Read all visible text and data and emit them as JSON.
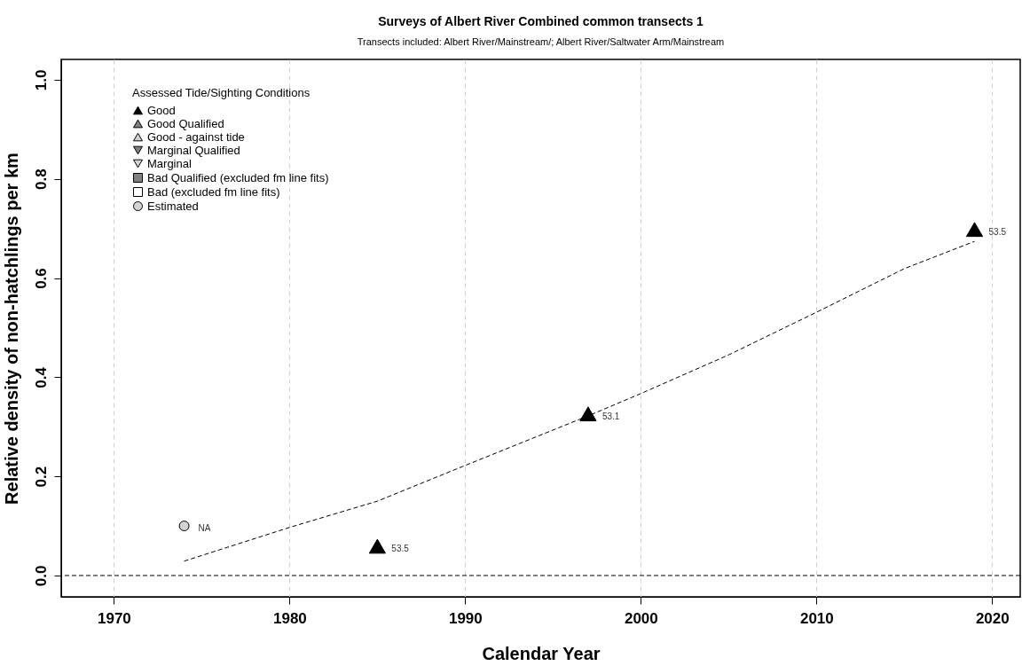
{
  "chart_data": {
    "type": "scatter",
    "title": "Surveys of Albert River  Combined common transects 1",
    "subtitle": "Transects included: Albert River/Mainstream/; Albert River/Saltwater Arm/Mainstream",
    "xlabel": "Calendar Year",
    "ylabel": "Relative density of non-hatchlings per km",
    "legend_title": "Assessed Tide/Sighting Conditions",
    "legend": "top left",
    "xlim": [
      1967,
      2021.6
    ],
    "xticks": [
      1970,
      1980,
      1990,
      2000,
      2010,
      2020
    ],
    "ylim": [
      -0.043,
      1.041
    ],
    "yticks": [
      {
        "value": 0,
        "label": "0.0"
      },
      {
        "value": 0.2,
        "label": "0.2"
      },
      {
        "value": 0.4,
        "label": "0.4"
      },
      {
        "value": 0.6,
        "label": "0.6"
      },
      {
        "value": 0.8,
        "label": "0.8"
      },
      {
        "value": 1,
        "label": "1.0"
      }
    ],
    "grid": "x",
    "ref_lines": [
      {
        "axis": "y",
        "value": 0,
        "color": "#000000",
        "line_style": "dashed"
      }
    ],
    "annotations": [
      {
        "text": "53.5",
        "x": 1985,
        "y": 0.059
      },
      {
        "text": "53.1",
        "x": 1997,
        "y": 0.326
      },
      {
        "text": "53.5",
        "x": 2019,
        "y": 0.698
      },
      {
        "text": "NA",
        "x": 1974,
        "y": 0.1
      }
    ],
    "series": [
      {
        "name": "Good",
        "marker": "triangle",
        "color": "#000000",
        "x": [
          1985,
          1997,
          2019
        ],
        "values": [
          0.059,
          0.326,
          0.698
        ]
      },
      {
        "name": "Good Qualified",
        "marker": "triangle",
        "color": "#808080"
      },
      {
        "name": "Good - against tide",
        "marker": "triangle",
        "color": "#d3d3d3"
      },
      {
        "name": "Marginal Qualified",
        "marker": "triangle-down",
        "color": "#808080"
      },
      {
        "name": "Marginal",
        "marker": "triangle-down",
        "color": "#d3d3d3"
      },
      {
        "name": "Bad Qualified (excluded fm line fits)",
        "marker": "square",
        "color": "#808080"
      },
      {
        "name": "Bad (excluded fm line fits)",
        "marker": "square",
        "color": "#ffffff"
      },
      {
        "name": "Estimated",
        "marker": "circle",
        "color": "#d3d3d3",
        "x": [
          1974
        ],
        "values": [
          0.1
        ]
      },
      {
        "type": "line",
        "line_style": "dashed",
        "color": "#000000",
        "x": [
          1974,
          1980,
          1985,
          1990,
          1997,
          2000,
          2005,
          2010,
          2015,
          2019
        ],
        "values": [
          0.029,
          0.097,
          0.15,
          0.222,
          0.322,
          0.367,
          0.445,
          0.531,
          0.619,
          0.674
        ]
      }
    ]
  }
}
